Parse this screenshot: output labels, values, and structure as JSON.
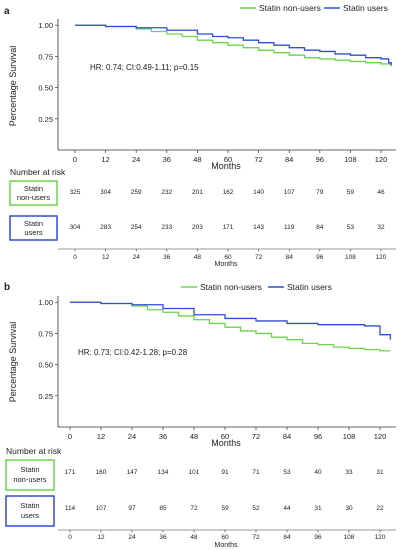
{
  "panels": [
    {
      "letter": "a",
      "hr_text": "HR: 0.74; CI:0.49-1.11; p=0.15",
      "legend": [
        "Statin non-users",
        "Statin users"
      ],
      "risk_title": "Number at risk",
      "risk_months_label": "Months",
      "risk_groups": [
        {
          "label_line1": "Statin",
          "label_line2": "non-users",
          "color": "#6cd64a",
          "values": [
            "325",
            "304",
            "259",
            "232",
            "201",
            "162",
            "140",
            "107",
            "79",
            "59",
            "46"
          ]
        },
        {
          "label_line1": "Statin",
          "label_line2": "users",
          "color": "#2f4fd0",
          "values": [
            "304",
            "283",
            "254",
            "233",
            "203",
            "171",
            "143",
            "119",
            "84",
            "53",
            "32"
          ]
        }
      ]
    },
    {
      "letter": "b",
      "hr_text": "HR: 0.73; CI:0.42-1.28; p=0.28",
      "legend": [
        "Statin non-users",
        "Statin users"
      ],
      "risk_title": "Number at risk",
      "risk_months_label": "Months",
      "risk_groups": [
        {
          "label_line1": "Statin",
          "label_line2": "non-users",
          "color": "#6cd64a",
          "values": [
            "171",
            "160",
            "147",
            "134",
            "101",
            "91",
            "71",
            "53",
            "40",
            "33",
            "31"
          ]
        },
        {
          "label_line1": "Statin",
          "label_line2": "users",
          "color": "#2f4fd0",
          "values": [
            "114",
            "107",
            "97",
            "85",
            "72",
            "59",
            "52",
            "44",
            "31",
            "30",
            "22"
          ]
        }
      ]
    }
  ],
  "chart_data": [
    {
      "type": "line",
      "step": true,
      "title": "",
      "xlabel": "Months",
      "ylabel": "Percentage Survival",
      "xlim": [
        0,
        125
      ],
      "ylim": [
        0,
        1.05
      ],
      "xticks": [
        0,
        12,
        24,
        36,
        48,
        60,
        72,
        84,
        96,
        108,
        120
      ],
      "yticks": [
        0.25,
        0.5,
        0.75,
        1.0
      ],
      "ytick_labels": [
        "0.25",
        "0.50",
        "0.75",
        "1.00"
      ],
      "grid": false,
      "legend_position": "top-right",
      "series": [
        {
          "name": "Statin non-users",
          "color": "#6cd64a",
          "x": [
            0,
            12,
            24,
            30,
            36,
            42,
            48,
            54,
            60,
            66,
            72,
            78,
            84,
            90,
            96,
            102,
            108,
            114,
            120,
            124
          ],
          "y": [
            1.0,
            0.99,
            0.97,
            0.95,
            0.93,
            0.91,
            0.88,
            0.86,
            0.84,
            0.82,
            0.8,
            0.78,
            0.76,
            0.74,
            0.73,
            0.72,
            0.71,
            0.7,
            0.69,
            0.67
          ]
        },
        {
          "name": "Statin users",
          "color": "#2f4fd0",
          "x": [
            0,
            12,
            24,
            36,
            48,
            54,
            60,
            66,
            72,
            78,
            84,
            90,
            96,
            102,
            108,
            114,
            120,
            123,
            124
          ],
          "y": [
            1.0,
            0.99,
            0.98,
            0.96,
            0.93,
            0.91,
            0.9,
            0.88,
            0.86,
            0.84,
            0.82,
            0.8,
            0.79,
            0.77,
            0.76,
            0.74,
            0.73,
            0.7,
            0.68
          ]
        }
      ]
    },
    {
      "type": "line",
      "step": true,
      "title": "",
      "xlabel": "Months",
      "ylabel": "Percentage Survival",
      "xlim": [
        0,
        125
      ],
      "ylim": [
        0,
        1.05
      ],
      "xticks": [
        0,
        12,
        24,
        36,
        48,
        60,
        72,
        84,
        96,
        108,
        120
      ],
      "yticks": [
        0.25,
        0.5,
        0.75,
        1.0
      ],
      "ytick_labels": [
        "0.25",
        "0.50",
        "0.75",
        "1.00"
      ],
      "grid": false,
      "legend_position": "top-right",
      "series": [
        {
          "name": "Statin non-users",
          "color": "#6cd64a",
          "x": [
            0,
            12,
            24,
            30,
            36,
            42,
            48,
            54,
            60,
            66,
            72,
            78,
            84,
            90,
            96,
            102,
            108,
            114,
            120,
            124
          ],
          "y": [
            1.0,
            0.99,
            0.97,
            0.94,
            0.92,
            0.89,
            0.86,
            0.83,
            0.8,
            0.77,
            0.75,
            0.72,
            0.7,
            0.67,
            0.66,
            0.64,
            0.63,
            0.62,
            0.61,
            0.61
          ]
        },
        {
          "name": "Statin users",
          "color": "#2f4fd0",
          "x": [
            0,
            12,
            24,
            36,
            48,
            60,
            72,
            84,
            96,
            108,
            114,
            120,
            124
          ],
          "y": [
            1.0,
            0.99,
            0.98,
            0.95,
            0.9,
            0.87,
            0.85,
            0.83,
            0.82,
            0.82,
            0.81,
            0.74,
            0.7
          ]
        }
      ]
    }
  ]
}
